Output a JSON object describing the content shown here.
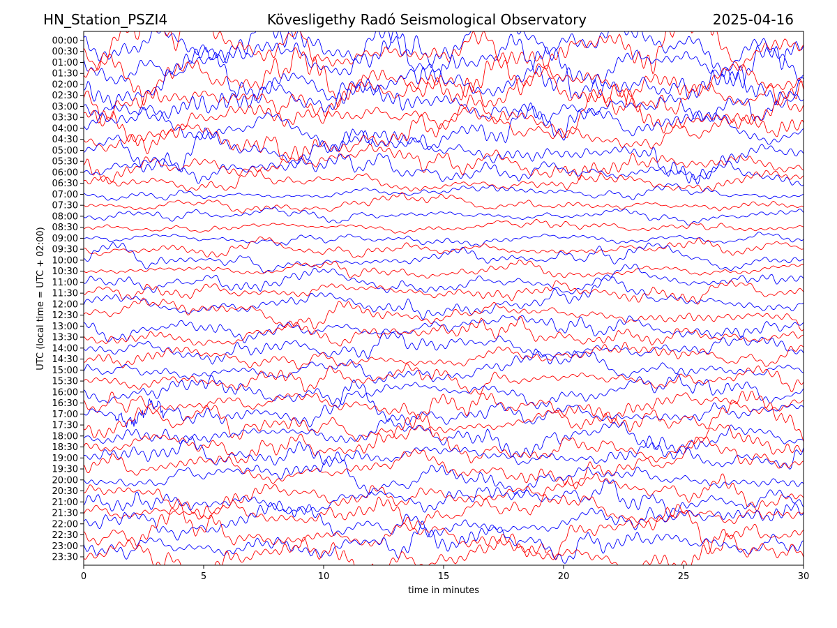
{
  "chart_data": {
    "type": "line",
    "title_left": "HN_Station_PSZI4",
    "title": "Kövesligethy Radó Seismological Observatory",
    "title_right": "2025-04-16",
    "xlabel": "time in minutes",
    "ylabel": "UTC (local time = UTC + 02:00)",
    "xlim": [
      0,
      30
    ],
    "x_ticks": [
      "0",
      "5",
      "10",
      "15",
      "20",
      "25",
      "30"
    ],
    "x_tick_values": [
      0,
      5,
      10,
      15,
      20,
      25,
      30
    ],
    "y_ticks": [
      "00:00",
      "00:30",
      "01:00",
      "01:30",
      "02:00",
      "02:30",
      "03:00",
      "03:30",
      "04:00",
      "04:30",
      "05:00",
      "05:30",
      "06:00",
      "06:30",
      "07:00",
      "07:30",
      "08:00",
      "08:30",
      "09:00",
      "09:30",
      "10:00",
      "10:30",
      "11:00",
      "11:30",
      "12:00",
      "12:30",
      "13:00",
      "13:30",
      "14:00",
      "14:30",
      "15:00",
      "15:30",
      "16:00",
      "16:30",
      "17:00",
      "17:30",
      "18:00",
      "18:30",
      "19:00",
      "19:30",
      "20:00",
      "20:30",
      "21:00",
      "21:30",
      "22:00",
      "22:30",
      "23:00",
      "23:30"
    ],
    "trace_colors": [
      "#0000ff",
      "#ff0000"
    ],
    "grid": false,
    "legend": "none"
  }
}
